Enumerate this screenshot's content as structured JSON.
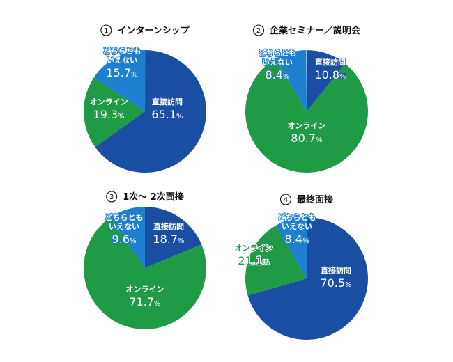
{
  "colors": {
    "direct": "#1a4ea3",
    "online": "#1f9a45",
    "neither": "#1c7fd0"
  },
  "chart_data": [
    {
      "type": "pie",
      "number": "1",
      "title": "インターンシップ",
      "slices": [
        {
          "label": "直接訪問",
          "value": 65.1,
          "key": "direct"
        },
        {
          "label": "オンライン",
          "value": 19.3,
          "key": "online"
        },
        {
          "label": "どちらとも\nいえない",
          "value": 15.7,
          "key": "neither"
        }
      ]
    },
    {
      "type": "pie",
      "number": "2",
      "title": "企業セミナー／説明会",
      "slices": [
        {
          "label": "直接訪問",
          "value": 10.8,
          "key": "direct"
        },
        {
          "label": "オンライン",
          "value": 80.7,
          "key": "online"
        },
        {
          "label": "どちらとも\nいえない",
          "value": 8.4,
          "key": "neither"
        }
      ]
    },
    {
      "type": "pie",
      "number": "3",
      "title": "1次〜 2次面接",
      "slices": [
        {
          "label": "直接訪問",
          "value": 18.7,
          "key": "direct"
        },
        {
          "label": "オンライン",
          "value": 71.7,
          "key": "online"
        },
        {
          "label": "どちらとも\nいえない",
          "value": 9.6,
          "key": "neither"
        }
      ]
    },
    {
      "type": "pie",
      "number": "4",
      "title": "最終面接",
      "slices": [
        {
          "label": "直接訪問",
          "value": 70.5,
          "key": "direct"
        },
        {
          "label": "オンライン",
          "value": 21.1,
          "key": "online"
        },
        {
          "label": "どちらとも\nいえない",
          "value": 8.4,
          "key": "neither"
        }
      ]
    }
  ]
}
